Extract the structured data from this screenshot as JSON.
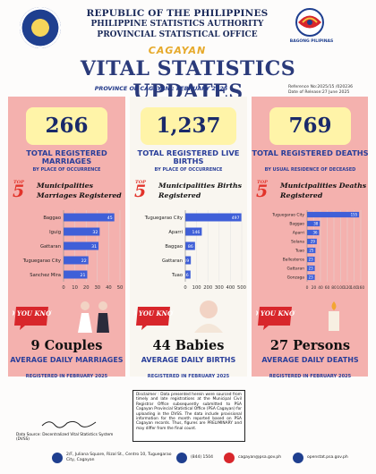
{
  "header": {
    "line1": "REPUBLIC OF THE PHILIPPINES",
    "line2": "PHILIPPINE STATISTICS AUTHORITY",
    "line3": "PROVINCIAL STATISTICAL OFFICE",
    "province": "CAGAYAN",
    "title": "VITAL STATISTICS UPDATES",
    "subtitle": "PROVINCE OF CAGAYAN : FEBRUARY 2025",
    "reference": "Reference No:2025/15 /020236",
    "release": "Date of Release:27 June 2025",
    "right_logo_label": "BAGONG PILIPINAS"
  },
  "marriages": {
    "total": "266",
    "label": "TOTAL REGISTERED MARRIAGES",
    "basis": "BY PLACE OF OCCURRENCE",
    "top5_badge": "TOP",
    "top5_num": "5",
    "top5_title": "Municipalities Marriages Registered",
    "did_you_know": "DID YOU KNOW?",
    "avg_value": "9 Couples",
    "avg_label": "AVERAGE DAILY MARRIAGES",
    "avg_period": "REGISTERED IN FEBRUARY 2025"
  },
  "births": {
    "total": "1,237",
    "label": "TOTAL REGISTERED LIVE BIRTHS",
    "basis": "BY PLACE OF OCCURRENCE",
    "top5_badge": "TOP",
    "top5_num": "5",
    "top5_title": "Municipalities Births Registered",
    "did_you_know": "DID YOU KNOW?",
    "avg_value": "44 Babies",
    "avg_label": "AVERAGE DAILY BIRTHS",
    "avg_period": "REGISTERED IN FEBRUARY 2025"
  },
  "deaths": {
    "total": "769",
    "label": "TOTAL REGISTERED DEATHS",
    "basis": "BY USUAL RESIDENCE OF DECEASED",
    "top5_badge": "TOP",
    "top5_num": "5",
    "top5_title": "Municipalities Deaths Registered",
    "did_you_know": "DID YOU KNOW?",
    "avg_value": "27 Persons",
    "avg_label": "AVERAGE DAILY DEATHS",
    "avg_period": "REGISTERED IN FEBRUARY 2025"
  },
  "chart_data": [
    {
      "type": "bar",
      "orientation": "horizontal",
      "categories": [
        "Baggao",
        "Iguig",
        "Gattaran",
        "Tuguegarao City",
        "Sanchez Mira"
      ],
      "values": [
        45,
        32,
        31,
        22,
        21
      ],
      "xlim": [
        0,
        50
      ],
      "xticks": [
        0,
        10,
        20,
        30,
        40,
        50
      ],
      "color": "#3f5fd8"
    },
    {
      "type": "bar",
      "orientation": "horizontal",
      "categories": [
        "Tuguegarao City",
        "Aparri",
        "Baggao",
        "Gattaran",
        "Tuao"
      ],
      "values": [
        497,
        146,
        86,
        49,
        46
      ],
      "xlim": [
        0,
        500
      ],
      "xticks": [
        0,
        100,
        200,
        300,
        400,
        500
      ],
      "color": "#3f5fd8"
    },
    {
      "type": "bar",
      "orientation": "horizontal",
      "categories": [
        "Tuguegarao City",
        "Baggao",
        "Aparri",
        "Solana",
        "Tuao",
        "Ballesteros",
        "Gattaran",
        "Gonzaga"
      ],
      "values": [
        155,
        38,
        36,
        29,
        25,
        23,
        23,
        23
      ],
      "xlim": [
        0,
        160
      ],
      "xticks": [
        0,
        20,
        40,
        60,
        80,
        100,
        120,
        140,
        160
      ],
      "color": "#3f5fd8"
    }
  ],
  "footer": {
    "signature": "J. Saldivar",
    "source": "Data Source: Decentralized Vital Statistics System (DVSS)",
    "disclaimer": "Disclaimer : Data presented herein were sourced from timely and late registrations at the Municipal Civil Registrar Office subsequently submitted to PSA Cagayan Provincial Statistical Office (PSA Cagayan) for uploading in the DVSS. The data include provisional information for the month reported based on PSA Cagayan records. Thus, figures are PRELIMINARY and may differ from the final count.",
    "address": "2/F, Juliana Square, Rizal St., Centro 10, Tuguegarao City, Cagayan",
    "phone": "(844) 1504",
    "email": "cagayan@psa.gov.ph",
    "website": "openstat.psa.gov.ph"
  },
  "colors": {
    "pink_panel": "#f4b1ae",
    "yellow_box": "#fff4a8",
    "navy_text": "#2a3f9a",
    "bar_blue": "#3f5fd8",
    "gold": "#e6a92a"
  }
}
